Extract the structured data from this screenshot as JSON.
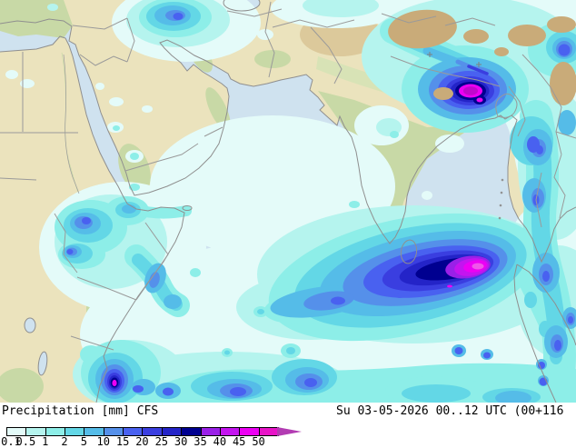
{
  "legend": {
    "title": "Precipitation [mm] CFS",
    "datetime": "Su 03-05-2026 00..12 UTC (00+116",
    "labels": [
      "0.1",
      "0.5",
      "1",
      "2",
      "5",
      "10",
      "15",
      "20",
      "25",
      "30",
      "35",
      "40",
      "45",
      "50"
    ],
    "colors": [
      "#e4fbf9",
      "#b5f4ee",
      "#8deee8",
      "#63d7e6",
      "#55bce8",
      "#5590ea",
      "#4961f0",
      "#3a3ee0",
      "#2424c8",
      "#000090",
      "#9a20e8",
      "#c414f0",
      "#ec00f4",
      "#e814c8"
    ],
    "arrow_color": "#b23cb2"
  },
  "map": {
    "colors": {
      "sea": "#cfe2ef",
      "land": "#ebe3bd",
      "vegetation": "#c8d9a6",
      "vegetation_light": "#d8e3b6",
      "vegetation_dark": "#aac687",
      "mountain": "#c9ab79",
      "mountain_light": "#dcc99b",
      "border": "#9a9a9a",
      "coast": "#8f8f8f",
      "heavy_core": "#c008cc",
      "itcz_core": "#f056ea"
    }
  }
}
